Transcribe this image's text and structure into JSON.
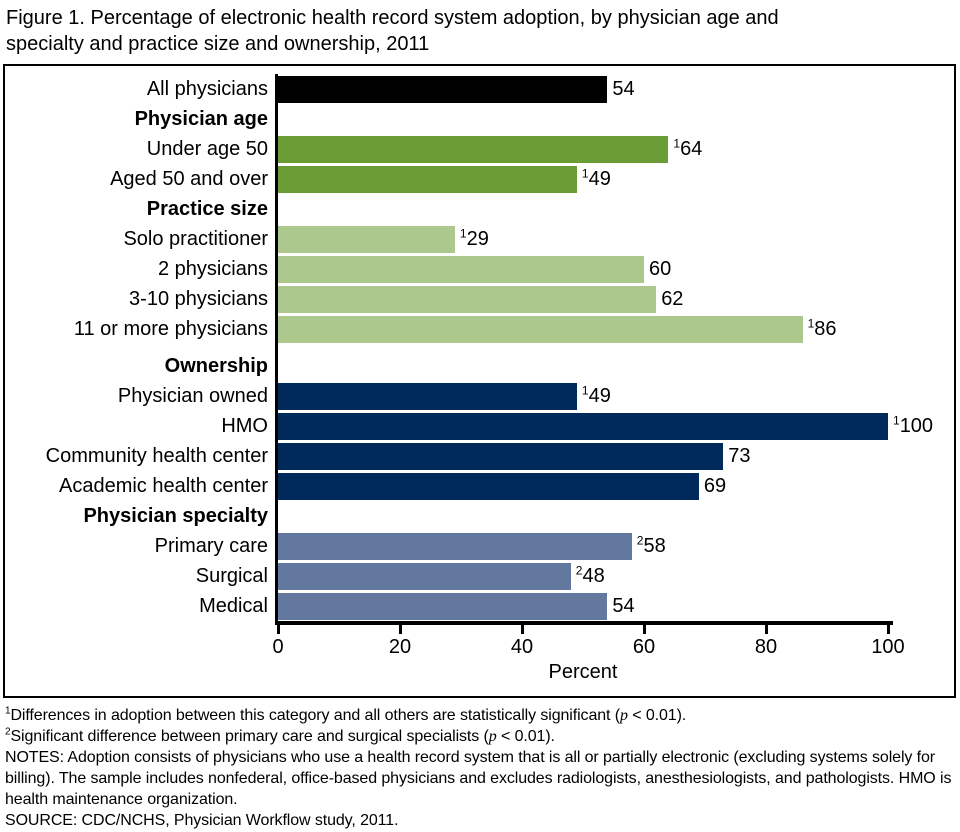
{
  "title": "Figure 1. Percentage of electronic health record system adoption, by physician age and specialty and practice size and ownership, 2011",
  "chart_data": {
    "type": "bar",
    "orientation": "horizontal",
    "xlabel": "Percent",
    "xlim": [
      0,
      100
    ],
    "x_ticks": [
      0,
      20,
      40,
      60,
      80,
      100
    ],
    "grid": false,
    "colors": {
      "all": "#000000",
      "age": "#6a9c35",
      "practice": "#adc88c",
      "ownership": "#002a5c",
      "specialty": "#62789e"
    },
    "rows": [
      {
        "type": "bar",
        "label": "All physicians",
        "value": 54,
        "sup": "",
        "group": "all"
      },
      {
        "type": "header",
        "label": "Physician age"
      },
      {
        "type": "bar",
        "label": "Under age 50",
        "value": 64,
        "sup": "1",
        "group": "age"
      },
      {
        "type": "bar",
        "label": "Aged 50 and over",
        "value": 49,
        "sup": "1",
        "group": "age"
      },
      {
        "type": "header",
        "label": "Practice size"
      },
      {
        "type": "bar",
        "label": "Solo practitioner",
        "value": 29,
        "sup": "1",
        "group": "practice"
      },
      {
        "type": "bar",
        "label": "2 physicians",
        "value": 60,
        "sup": "",
        "group": "practice"
      },
      {
        "type": "bar",
        "label": "3-10 physicians",
        "value": 62,
        "sup": "",
        "group": "practice"
      },
      {
        "type": "bar",
        "label": "11 or more physicians",
        "value": 86,
        "sup": "1",
        "group": "practice"
      },
      {
        "type": "header",
        "label": "Ownership",
        "extra_gap": true
      },
      {
        "type": "bar",
        "label": "Physician owned",
        "value": 49,
        "sup": "1",
        "group": "ownership"
      },
      {
        "type": "bar",
        "label": "HMO",
        "value": 100,
        "sup": "1",
        "group": "ownership"
      },
      {
        "type": "bar",
        "label": "Community health center",
        "value": 73,
        "sup": "",
        "group": "ownership"
      },
      {
        "type": "bar",
        "label": "Academic health center",
        "value": 69,
        "sup": "",
        "group": "ownership"
      },
      {
        "type": "header",
        "label": "Physician specialty"
      },
      {
        "type": "bar",
        "label": "Primary care",
        "value": 58,
        "sup": "2",
        "group": "specialty"
      },
      {
        "type": "bar",
        "label": "Surgical",
        "value": 48,
        "sup": "2",
        "group": "specialty"
      },
      {
        "type": "bar",
        "label": "Medical",
        "value": 54,
        "sup": "",
        "group": "specialty"
      }
    ]
  },
  "footnotes": [
    {
      "sup": "1",
      "pre": "Differences in adoption between this category and all others are statistically significant (",
      "p": "p",
      "post": " < 0.01)."
    },
    {
      "sup": "2",
      "pre": "Significant difference between primary care and surgical specialists (",
      "p": "p",
      "post": " < 0.01)."
    }
  ],
  "notes": "NOTES: Adoption consists of physicians who use a health record system that is all or partially electronic (excluding systems solely for billing). The sample includes nonfederal, office-based physicians and excludes radiologists, anesthesiologists, and pathologists. HMO is health maintenance organization.",
  "source": "SOURCE: CDC/NCHS, Physician Workflow study, 2011."
}
